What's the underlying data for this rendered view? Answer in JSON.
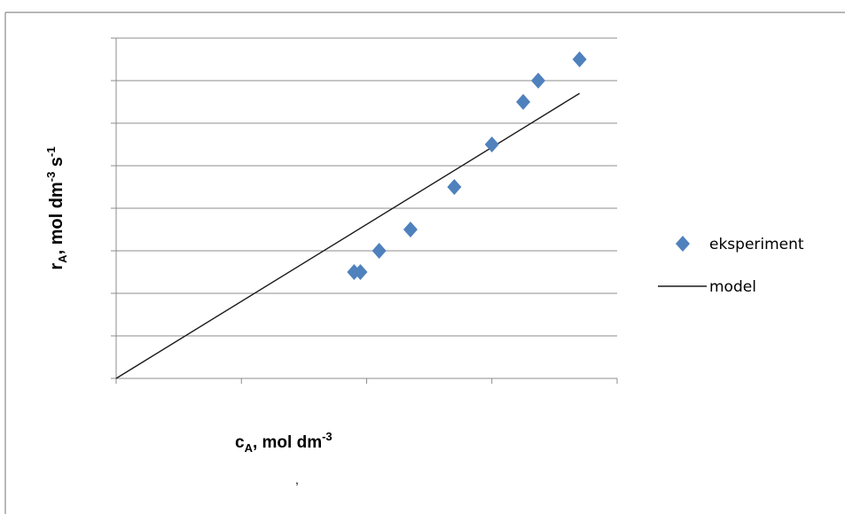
{
  "chart_data": {
    "type": "scatter",
    "title": "",
    "ylabel": {
      "main": "r",
      "sub": "A",
      "rest": ", mol dm",
      "sup1": "-3",
      "rest2": " s",
      "sup2": "-1"
    },
    "xlabel": {
      "main": "c",
      "sub": "A",
      "rest": ", mol dm",
      "sup": "-3"
    },
    "xlim": [
      0,
      4
    ],
    "ylim": [
      0,
      8
    ],
    "grid": true,
    "legend_position": "right",
    "series": [
      {
        "name": "eksperiment",
        "kind": "scatter",
        "marker": "diamond",
        "color": "#4f81bd",
        "x": [
          1.9,
          1.95,
          2.1,
          2.35,
          2.7,
          3.0,
          3.25,
          3.37,
          3.7
        ],
        "y": [
          2.5,
          2.5,
          3.0,
          3.5,
          4.5,
          5.5,
          6.5,
          7.0,
          7.5
        ]
      },
      {
        "name": "model",
        "kind": "line",
        "color": "#1a1a1a",
        "x": [
          0,
          3.7
        ],
        "y": [
          0,
          6.7
        ]
      }
    ]
  }
}
